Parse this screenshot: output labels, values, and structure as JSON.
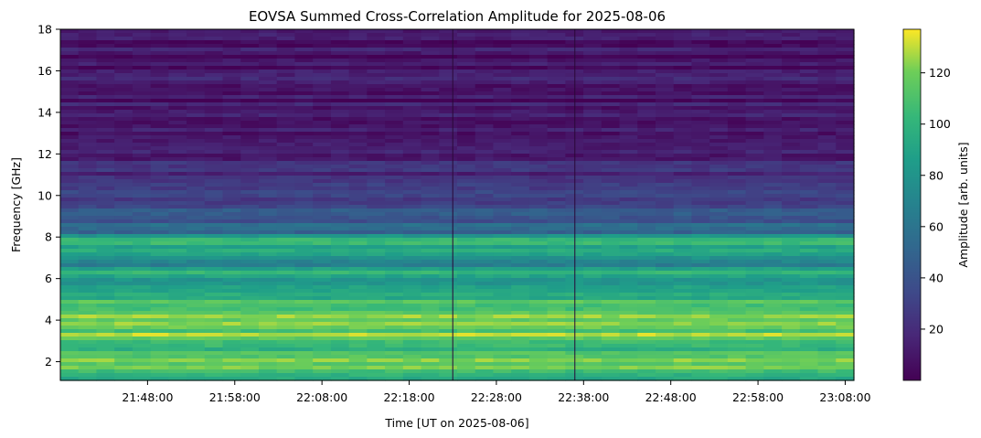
{
  "chart_data": {
    "type": "heatmap",
    "title": "EOVSA Summed Cross-Correlation Amplitude for 2025-08-06",
    "xlabel": "Time [UT on 2025-08-06]",
    "ylabel": "Frequency [GHz]",
    "colorbar_label": "Amplitude [arb. units]",
    "colormap": "viridis",
    "x_time_range": [
      "21:38:00",
      "23:09:00"
    ],
    "x_ticks": [
      "21:48:00",
      "21:58:00",
      "22:08:00",
      "22:18:00",
      "22:28:00",
      "22:38:00",
      "22:48:00",
      "22:58:00",
      "23:08:00"
    ],
    "ylim": [
      1.1,
      18.0
    ],
    "y_ticks": [
      2,
      4,
      6,
      8,
      10,
      12,
      14,
      16,
      18
    ],
    "colorbar_range": [
      0,
      137
    ],
    "colorbar_ticks": [
      20,
      40,
      60,
      80,
      100,
      120
    ],
    "grid": false,
    "frequency_profile_ghz": [
      {
        "f": 1.1,
        "amp": 105
      },
      {
        "f": 1.4,
        "amp": 95
      },
      {
        "f": 1.7,
        "amp": 115
      },
      {
        "f": 2.0,
        "amp": 120
      },
      {
        "f": 2.4,
        "amp": 110
      },
      {
        "f": 2.8,
        "amp": 100
      },
      {
        "f": 3.2,
        "amp": 130
      },
      {
        "f": 3.6,
        "amp": 110
      },
      {
        "f": 4.0,
        "amp": 120
      },
      {
        "f": 4.4,
        "amp": 115
      },
      {
        "f": 4.8,
        "amp": 110
      },
      {
        "f": 5.2,
        "amp": 95
      },
      {
        "f": 5.6,
        "amp": 85
      },
      {
        "f": 6.0,
        "amp": 80
      },
      {
        "f": 6.3,
        "amp": 100
      },
      {
        "f": 6.6,
        "amp": 70
      },
      {
        "f": 7.0,
        "amp": 75
      },
      {
        "f": 7.5,
        "amp": 95
      },
      {
        "f": 7.8,
        "amp": 105
      },
      {
        "f": 8.2,
        "amp": 55
      },
      {
        "f": 8.6,
        "amp": 48
      },
      {
        "f": 9.0,
        "amp": 42
      },
      {
        "f": 9.5,
        "amp": 35
      },
      {
        "f": 10.0,
        "amp": 30
      },
      {
        "f": 10.5,
        "amp": 25
      },
      {
        "f": 11.0,
        "amp": 20
      },
      {
        "f": 11.8,
        "amp": 16
      },
      {
        "f": 12.5,
        "amp": 13
      },
      {
        "f": 14.0,
        "amp": 10
      },
      {
        "f": 16.0,
        "amp": 9
      },
      {
        "f": 18.0,
        "amp": 8
      }
    ],
    "dropout_times": [
      "22:23:00",
      "22:37:00"
    ],
    "colors": {
      "viridis_low": "#440154",
      "viridis_mid": "#21918c",
      "viridis_high": "#fde725"
    }
  }
}
